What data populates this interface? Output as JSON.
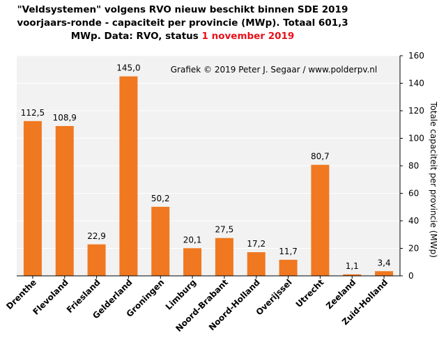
{
  "chart_data": {
    "type": "bar",
    "title_lines": [
      "\"Veldsystemen\" volgens RVO nieuw beschikt binnen SDE 2019",
      "voorjaars-ronde - capaciteit per provincie (MWp). Totaal 601,3"
    ],
    "title_line3_prefix": "MWp. Data: RVO, status ",
    "title_line3_highlight": "1 november 2019",
    "annotation": "Grafiek  © 2019 Peter J. Segaar / www.polderpv.nl",
    "ylabel": "Totale capaciteit per provincie (MWp)",
    "ylim": [
      0,
      160
    ],
    "yticks": [
      0,
      20,
      40,
      60,
      80,
      100,
      120,
      140,
      160
    ],
    "categories": [
      "Drenthe",
      "Flevoland",
      "Friesland",
      "Gelderland",
      "Groningen",
      "Limburg",
      "Noord-Brabant",
      "Noord-Holland",
      "Overijssel",
      "Utrecht",
      "Zeeland",
      "Zuid-Holland"
    ],
    "values": [
      112.5,
      108.9,
      22.9,
      145.0,
      50.2,
      20.1,
      27.5,
      17.2,
      11.7,
      80.7,
      1.1,
      3.4
    ],
    "value_labels": [
      "112,5",
      "108,9",
      "22,9",
      "145,0",
      "50,2",
      "20,1",
      "27,5",
      "17,2",
      "11,7",
      "80,7",
      "1,1",
      "3,4"
    ],
    "colors": {
      "bar": "#f07820",
      "plot_background": "#f2f2f2",
      "grid": "#ffffff",
      "highlight": "#e8101a"
    },
    "grid": true,
    "y_axis_side": "right"
  }
}
